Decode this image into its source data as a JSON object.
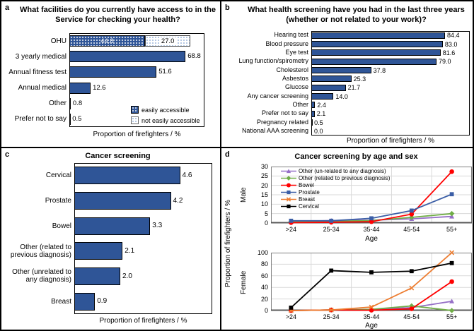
{
  "panels": {
    "a": {
      "label": "a",
      "title": "What facilities do you currently have access to in the Service for checking your health?",
      "xlabel": "Proportion of firefighters / %"
    },
    "b": {
      "label": "b",
      "title": "What health screening have you had in the last three years (whether or not related to your work)?",
      "xlabel": "Proportion of firefighters / %"
    },
    "c": {
      "label": "c",
      "title": "Cancer screening",
      "xlabel": "Proportion of firefighters / %"
    },
    "d": {
      "label": "d",
      "title": "Cancer screening by age and sex",
      "ylabel": "Proportion of firefighters / %",
      "xlabel": "Age",
      "male_label": "Male",
      "female_label": "Female"
    }
  },
  "colors": {
    "bar_blue": "#2F5597",
    "grid": "#D9D9D9",
    "plot_border": "#808080",
    "axis": "#595959"
  },
  "chart_data": [
    {
      "id": "a",
      "type": "bar",
      "orientation": "horizontal",
      "title": "What facilities do you currently have access to in the Service for checking your health?",
      "xlabel": "Proportion of firefighters / %",
      "xlim": [
        0,
        80
      ],
      "categories": [
        "OHU",
        "3 yearly medical",
        "Annual fitness test",
        "Annual medical",
        "Other",
        "Prefer not to say"
      ],
      "series": [
        {
          "name": "easily accessible",
          "values": [
            44.8,
            68.8,
            51.6,
            12.6,
            0.8,
            0.5
          ]
        },
        {
          "name": "not easily accessible",
          "values": [
            27.0,
            0,
            0,
            0,
            0,
            0
          ]
        }
      ],
      "legend_position": "inside bottom-right"
    },
    {
      "id": "b",
      "type": "bar",
      "orientation": "horizontal",
      "title": "What health screening have you had in the last three years (whether or not related to your work)?",
      "xlabel": "Proportion of firefighters / %",
      "xlim": [
        0,
        100
      ],
      "categories": [
        "Hearing test",
        "Blood pressure",
        "Eye test",
        "Lung function/spirometry",
        "Cholesterol",
        "Asbestos",
        "Glucose",
        "Any cancer screening",
        "Other",
        "Prefer not to say",
        "Pregnancy related",
        "National AAA screening"
      ],
      "values": [
        84.4,
        83.0,
        81.6,
        79.0,
        37.8,
        25.3,
        21.7,
        14.0,
        2.4,
        2.1,
        0.5,
        0.0
      ]
    },
    {
      "id": "c",
      "type": "bar",
      "orientation": "horizontal",
      "title": "Cancer screening",
      "xlabel": "Proportion of firefighters / %",
      "xlim": [
        0,
        6
      ],
      "categories": [
        "Cervical",
        "Prostate",
        "Bowel",
        "Other (related to previous diagnosis)",
        "Other (unrelated to any diagnosis)",
        "Breast"
      ],
      "values": [
        4.6,
        4.2,
        3.3,
        2.1,
        2.0,
        0.9
      ]
    },
    {
      "id": "d",
      "type": "line",
      "title": "Cancer screening by age and sex",
      "xlabel": "Age",
      "ylabel": "Proportion of firefighters / %",
      "x": [
        ">24",
        "25-34",
        "35-44",
        "45-54",
        "55+"
      ],
      "subplots": [
        {
          "name": "Male",
          "ylim": [
            0,
            30
          ],
          "yticks": [
            0,
            5,
            10,
            15,
            20,
            25,
            30
          ]
        },
        {
          "name": "Female",
          "ylim": [
            0,
            100
          ],
          "yticks": [
            0,
            20,
            40,
            60,
            80,
            100
          ]
        }
      ],
      "series": [
        {
          "name": "Other (un-related to any diagnosis)",
          "color": "#9670C7",
          "marker": "triangle",
          "male": [
            0.8,
            1.3,
            1.5,
            2.2,
            3.5
          ],
          "female": [
            0,
            1,
            2,
            5,
            16
          ]
        },
        {
          "name": "Other (related to previous diagnosis)",
          "color": "#70AD47",
          "marker": "diamond",
          "male": [
            0.8,
            0.9,
            1.3,
            3.0,
            5.0
          ],
          "female": [
            0,
            1,
            2,
            8,
            0
          ]
        },
        {
          "name": "Bowel",
          "color": "#FF0000",
          "marker": "circle",
          "male": [
            0.2,
            0.4,
            0.7,
            4.7,
            27.3
          ],
          "female": [
            0,
            1,
            0.5,
            3,
            50
          ]
        },
        {
          "name": "Prostate",
          "color": "#3B5EA6",
          "marker": "square",
          "male": [
            1.2,
            1.2,
            2.5,
            6.6,
            15.3
          ],
          "female": [
            0,
            0,
            0,
            0,
            0
          ]
        },
        {
          "name": "Breast",
          "color": "#ED7D31",
          "marker": "x",
          "male": [
            0,
            0,
            0,
            0,
            0
          ],
          "female": [
            0,
            1,
            6,
            39,
            100
          ]
        },
        {
          "name": "Cervical",
          "color": "#000000",
          "marker": "square",
          "male": [
            0,
            0,
            0,
            0,
            0
          ],
          "female": [
            5,
            69,
            66,
            68,
            82
          ]
        }
      ],
      "legend_position": "inside top-left of Male subplot"
    }
  ]
}
